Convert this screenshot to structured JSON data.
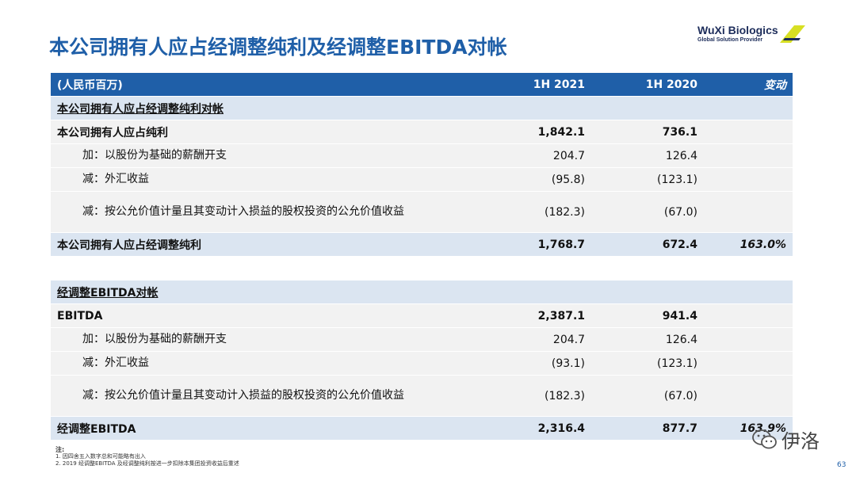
{
  "title": "本公司拥有人应占经调整纯利及经调整EBITDA对帐",
  "logo": {
    "brand": "WuXi Biologics",
    "tagline": "Global Solution Provider"
  },
  "header": {
    "label": "(人民币百万)",
    "col1": "1H 2021",
    "col2": "1H 2020",
    "col3": "变动"
  },
  "section1": {
    "title": "本公司拥有人应占经调整纯利对帐",
    "rows": [
      {
        "label": "本公司拥有人应占纯利",
        "v2021": "1,842.1",
        "v2020": "736.1",
        "chg": ""
      },
      {
        "label": "加：以股份为基础的薪酬开支",
        "v2021": "204.7",
        "v2020": "126.4",
        "chg": ""
      },
      {
        "label": "减：外汇收益",
        "v2021": "(95.8)",
        "v2020": "(123.1)",
        "chg": ""
      },
      {
        "label": "减：按公允价值计量且其变动计入损益的股权投资的公允价值收益",
        "v2021": "(182.3)",
        "v2020": "(67.0)",
        "chg": ""
      }
    ],
    "total": {
      "label": "本公司拥有人应占经调整纯利",
      "v2021": "1,768.7",
      "v2020": "672.4",
      "chg": "163.0%"
    }
  },
  "section2": {
    "title": "经调整EBITDA对帐",
    "rows": [
      {
        "label": "EBITDA",
        "v2021": "2,387.1",
        "v2020": "941.4",
        "chg": ""
      },
      {
        "label": "加：以股份为基础的薪酬开支",
        "v2021": "204.7",
        "v2020": "126.4",
        "chg": ""
      },
      {
        "label": "减：外汇收益",
        "v2021": "(93.1)",
        "v2020": "(123.1)",
        "chg": ""
      },
      {
        "label": "减：按公允价值计量且其变动计入损益的股权投资的公允价值收益",
        "v2021": "(182.3)",
        "v2020": "(67.0)",
        "chg": ""
      }
    ],
    "total": {
      "label": "经调整EBITDA",
      "v2021": "2,316.4",
      "v2020": "877.7",
      "chg": "163.9%"
    }
  },
  "notes": {
    "heading": "注:",
    "lines": [
      "1. 因四舍五入数字总和可能略有出入",
      "2. 2019 经调整EBITDA 及经调整纯利按进一步扣除本集团投资收益后重述"
    ]
  },
  "watermark": "伊洛",
  "page_number": "63",
  "colors": {
    "header_bg": "#1f5fa8",
    "section_bg": "#dbe5f1",
    "row_bg": "#f2f2f2",
    "title": "#1f5fa8"
  }
}
